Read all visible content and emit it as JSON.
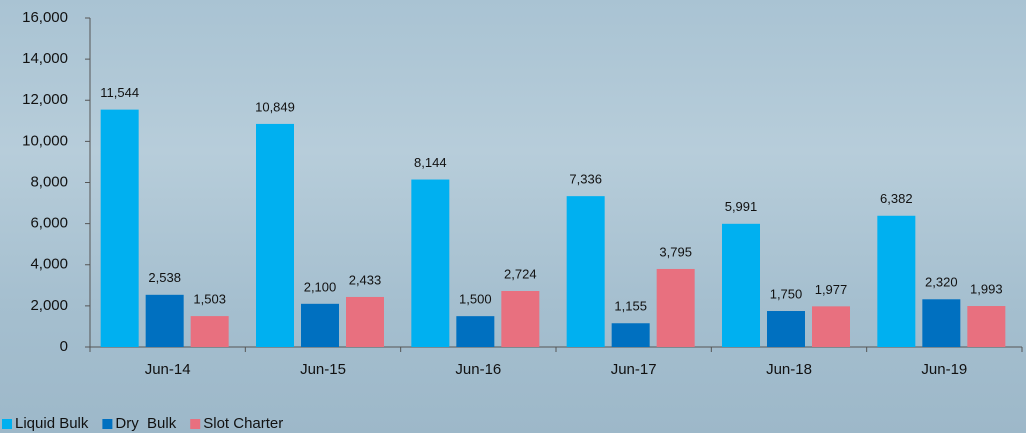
{
  "chart_data": {
    "type": "bar",
    "categories": [
      "Jun-14",
      "Jun-15",
      "Jun-16",
      "Jun-17",
      "Jun-18",
      "Jun-19"
    ],
    "series": [
      {
        "name": "Liquid Bulk",
        "color": "#00b0f0",
        "values": [
          11544,
          10849,
          8144,
          7336,
          5991,
          6382
        ],
        "value_labels": [
          "11,544",
          "10,849",
          "8,144",
          "7,336",
          "5,991",
          "6,382"
        ]
      },
      {
        "name": "Dry  Bulk",
        "color": "#0070c0",
        "values": [
          2538,
          2100,
          1500,
          1155,
          1750,
          2320
        ],
        "value_labels": [
          "2,538",
          "2,100",
          "1,500",
          "1,155",
          "1,750",
          "2,320"
        ]
      },
      {
        "name": "Slot Charter",
        "color": "#e8707f",
        "values": [
          1503,
          2433,
          2724,
          3795,
          1977,
          1993
        ],
        "value_labels": [
          "1,503",
          "2,433",
          "2,724",
          "3,795",
          "1,977",
          "1,993"
        ]
      }
    ],
    "ylim": [
      0,
      16000
    ],
    "yticks": [
      0,
      {
        "value": 2000,
        "label": "2,000"
      },
      {
        "value": 4000,
        "label": "4,000"
      },
      {
        "value": 6000,
        "label": "6,000"
      },
      {
        "value": 8000,
        "label": "8,000"
      },
      {
        "value": 10000,
        "label": "10,000"
      },
      {
        "value": 12000,
        "label": "12,000"
      },
      {
        "value": 14000,
        "label": "14,000"
      },
      {
        "value": 16000,
        "label": "16,000"
      }
    ],
    "grid": false,
    "legend": "bottom-left"
  }
}
